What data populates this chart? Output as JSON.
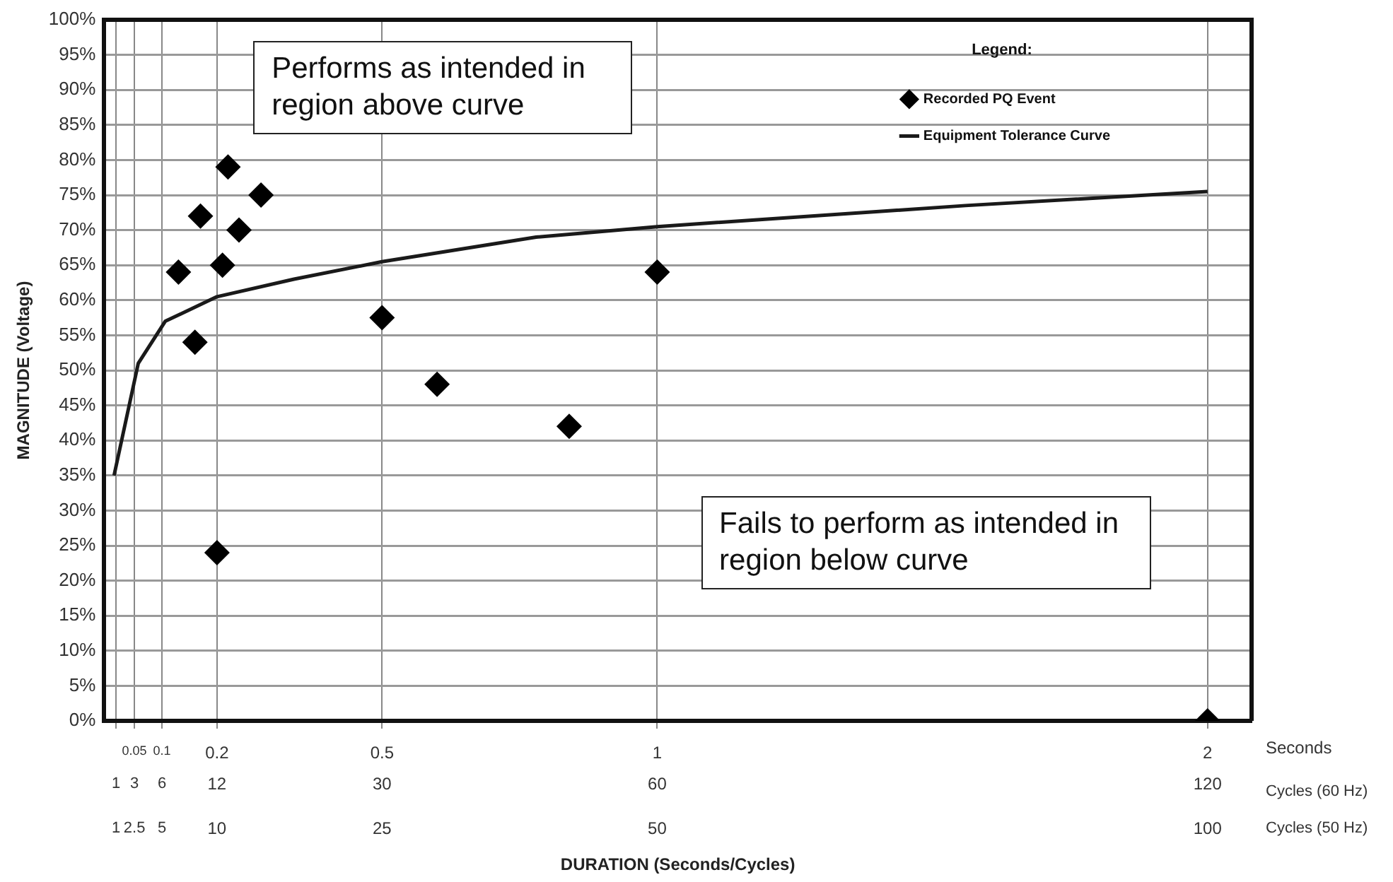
{
  "chart_data": {
    "type": "scatter",
    "xlabel": "DURATION (Seconds/Cycles)",
    "ylabel": "MAGNITUDE (Voltage)",
    "x2label": "Cycles (60 Hz)",
    "legend_title": "Legend:",
    "annotations": [
      "Seconds",
      "Cycles (50 Hz)",
      "1",
      "2.5",
      "5",
      "10",
      "25",
      "50",
      "100",
      "Performs as intended in region above curve",
      "Fails to perform as intended in region below curve"
    ],
    "series": [
      {
        "name": "Recorded PQ Event",
        "type": "scatter",
        "color": "#000000",
        "marker": "diamond",
        "x": [
          0.13,
          0.17,
          0.16,
          0.22,
          0.24,
          0.21,
          0.28,
          0.2,
          0.5,
          0.6,
          0.84,
          1.0,
          2.0
        ],
        "values": [
          64,
          72,
          54,
          79,
          70,
          65,
          75,
          24,
          57.5,
          48,
          42,
          64,
          0
        ]
      },
      {
        "name": "Equipment Tolerance Curve",
        "type": "line",
        "color": "#1a1a1a",
        "marker": "none",
        "line_style": "solid",
        "x": [
          0.013,
          0.057,
          0.106,
          0.2,
          0.34,
          0.5,
          0.78,
          1.0,
          1.56,
          2.0
        ],
        "values": [
          35,
          51,
          57,
          60.5,
          63,
          65.5,
          69,
          70.5,
          73.5,
          75.5
        ]
      }
    ],
    "xlim": [
      -0.005,
      2.08
    ],
    "xticks": [
      {
        "value": 0.0167,
        "label": null
      },
      0.05,
      0.1,
      0.2,
      0.5,
      1,
      2
    ],
    "x2lim": [
      -0.3,
      124.8
    ],
    "x2ticks": [
      1,
      3,
      6,
      12,
      30,
      60,
      120
    ],
    "ylim": [
      0,
      100
    ],
    "yticks": [
      {
        "value": 0,
        "label": "0%"
      },
      {
        "value": 5,
        "label": "5%"
      },
      {
        "value": 10,
        "label": "10%"
      },
      {
        "value": 15,
        "label": "15%"
      },
      {
        "value": 20,
        "label": "20%"
      },
      {
        "value": 25,
        "label": "25%"
      },
      {
        "value": 30,
        "label": "30%"
      },
      {
        "value": 35,
        "label": "35%"
      },
      {
        "value": 40,
        "label": "40%"
      },
      {
        "value": 45,
        "label": "45%"
      },
      {
        "value": 50,
        "label": "50%"
      },
      {
        "value": 55,
        "label": "55%"
      },
      {
        "value": 60,
        "label": "60%"
      },
      {
        "value": 65,
        "label": "65%"
      },
      {
        "value": 70,
        "label": "70%"
      },
      {
        "value": 75,
        "label": "75%"
      },
      {
        "value": 80,
        "label": "80%"
      },
      {
        "value": 85,
        "label": "85%"
      },
      {
        "value": 90,
        "label": "90%"
      },
      {
        "value": 95,
        "label": "95%"
      },
      {
        "value": 100,
        "label": "100%"
      }
    ],
    "grid": true,
    "legend": "top right"
  }
}
